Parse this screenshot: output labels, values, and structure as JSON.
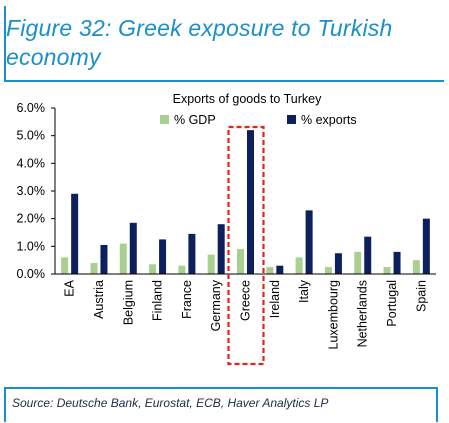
{
  "figure": {
    "title_line1": "Figure 32: Greek exposure to Turkish",
    "title_line2": "economy",
    "source": "Source: Deutsche Bank, Eurostat, ECB, Haver Analytics LP"
  },
  "colors": {
    "accent": "#1a8fc9",
    "gdp_series": "#a9d08e",
    "exports_series": "#0d1f5c",
    "highlight_box": "#e2231a"
  },
  "chart_data": {
    "type": "bar",
    "title": "Exports of goods to Turkey",
    "categories": [
      "EA",
      "Austria",
      "Belgium",
      "Finland",
      "France",
      "Germany",
      "Greece",
      "Ireland",
      "Italy",
      "Luxembourg",
      "Netherlands",
      "Portugal",
      "Spain"
    ],
    "series": [
      {
        "name": "% GDP",
        "values": [
          0.6,
          0.4,
          1.1,
          0.35,
          0.3,
          0.7,
          0.9,
          0.25,
          0.6,
          0.25,
          0.8,
          0.25,
          0.5
        ]
      },
      {
        "name": "% exports",
        "values": [
          2.9,
          1.05,
          1.85,
          1.25,
          1.45,
          1.8,
          5.2,
          0.3,
          2.3,
          0.75,
          1.35,
          0.8,
          2.0
        ]
      }
    ],
    "y_ticks": [
      "0.0%",
      "1.0%",
      "2.0%",
      "3.0%",
      "4.0%",
      "5.0%",
      "6.0%"
    ],
    "ylim": [
      0,
      6
    ],
    "xlabel": "",
    "ylabel": "",
    "grid": false,
    "legend_placement": "top-center",
    "highlight_category": "Greece"
  }
}
